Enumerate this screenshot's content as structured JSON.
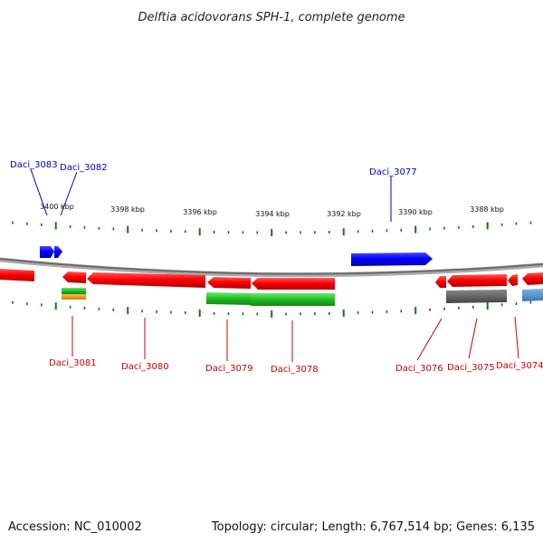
{
  "title": "Delftia acidovorans SPH-1, complete genome",
  "footer": {
    "accession": "Accession: NC_010002",
    "summary": "Topology: circular; Length: 6,767,514 bp; Genes: 6,135"
  },
  "scale_labels": [
    "3400 kbp",
    "3398 kbp",
    "3396 kbp",
    "3394 kbp",
    "3392 kbp",
    "3390 kbp",
    "3388 kbp"
  ],
  "genes_forward": [
    {
      "name": "Daci_3083",
      "color": "#0000cc"
    },
    {
      "name": "Daci_3082",
      "color": "#0000cc"
    },
    {
      "name": "Daci_3077",
      "color": "#0000cc"
    }
  ],
  "genes_reverse": [
    {
      "name": "Daci_3081",
      "color": "#cc0000"
    },
    {
      "name": "Daci_3080",
      "color": "#cc0000"
    },
    {
      "name": "Daci_3079",
      "color": "#cc0000"
    },
    {
      "name": "Daci_3078",
      "color": "#cc0000"
    },
    {
      "name": "Daci_3076",
      "color": "#cc0000"
    },
    {
      "name": "Daci_3075",
      "color": "#cc0000"
    },
    {
      "name": "Daci_3074",
      "color": "#cc0000"
    }
  ],
  "colors": {
    "cds": "#ff0000",
    "forward_cds": "#0000ff",
    "cog_green": "#22bb22",
    "cog_orange": "#ee8800",
    "cog_gray": "#666666",
    "cog_blue": "#4488cc",
    "tick": "#117711",
    "backbone": "#888888"
  }
}
